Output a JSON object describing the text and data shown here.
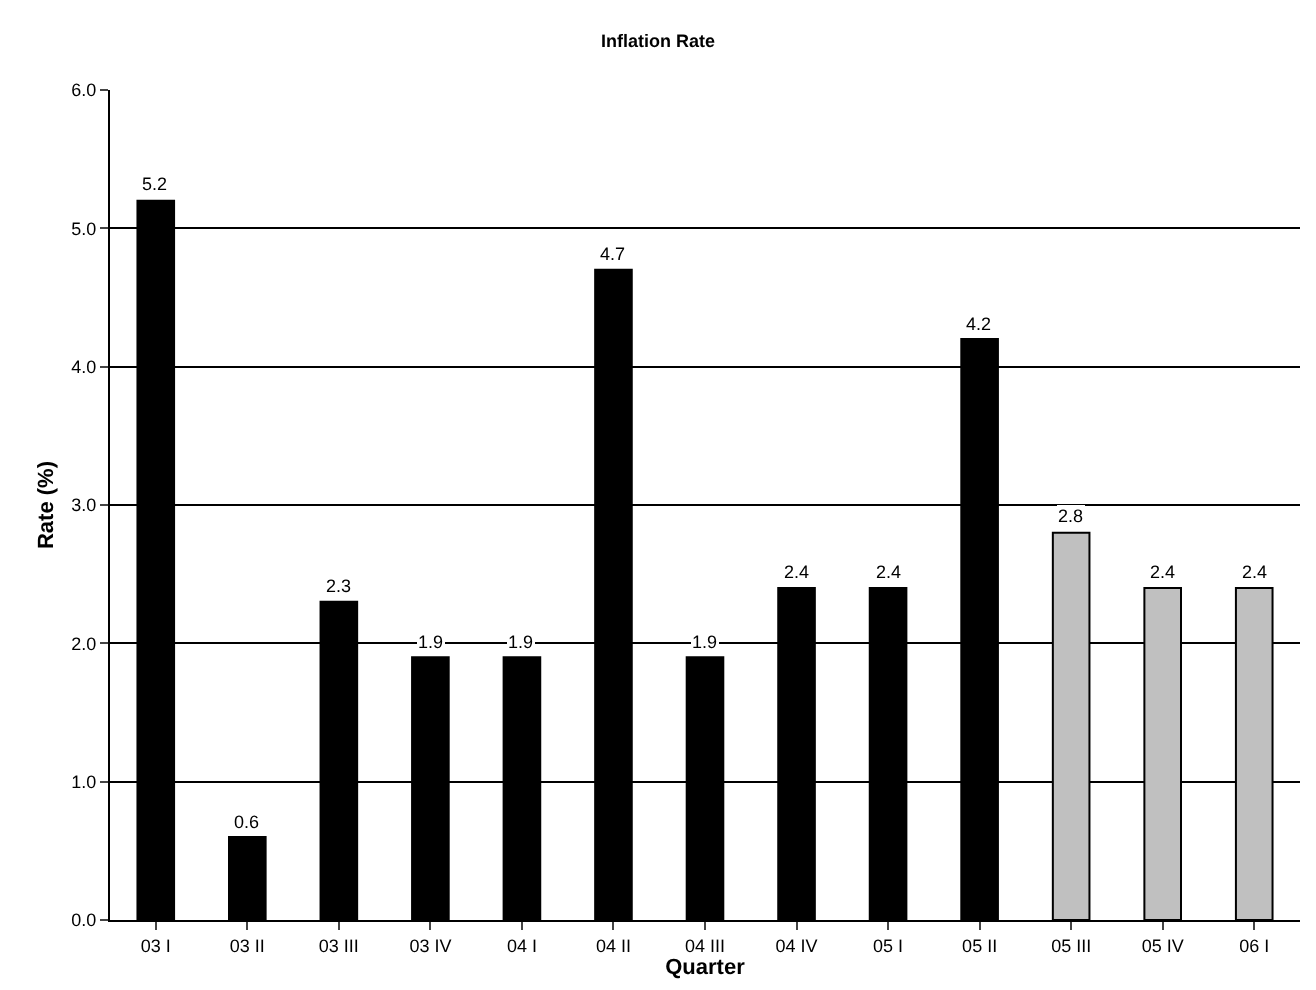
{
  "chart_data": {
    "type": "bar",
    "title": "Inflation Rate",
    "xlabel": "Quarter",
    "ylabel": "Rate (%)",
    "categories": [
      "03 I",
      "03 II",
      "03 III",
      "03 IV",
      "04 I",
      "04 II",
      "04 III",
      "04 IV",
      "05 I",
      "05 II",
      "05 III",
      "05 IV",
      "06 I"
    ],
    "values": [
      5.2,
      0.6,
      2.3,
      1.9,
      1.9,
      4.7,
      1.9,
      2.4,
      2.4,
      4.2,
      2.8,
      2.4,
      2.4
    ],
    "colors": [
      "#000000",
      "#000000",
      "#000000",
      "#000000",
      "#000000",
      "#000000",
      "#000000",
      "#000000",
      "#000000",
      "#000000",
      "#c0c0c0",
      "#c0c0c0",
      "#c0c0c0"
    ],
    "value_labels": [
      "5.2",
      "0.6",
      "2.3",
      "1.9",
      "1.9",
      "4.7",
      "1.9",
      "2.4",
      "2.4",
      "4.2",
      "2.8",
      "2.4",
      "2.4"
    ],
    "ylim": [
      0,
      6
    ],
    "yticks": [
      {
        "value": 0,
        "label": "0.0"
      },
      {
        "value": 1,
        "label": "1.0"
      },
      {
        "value": 2,
        "label": "2.0"
      },
      {
        "value": 3,
        "label": "3.0"
      },
      {
        "value": 4,
        "label": "4.0"
      },
      {
        "value": 5,
        "label": "5.0"
      },
      {
        "value": 6,
        "label": "6.0"
      }
    ],
    "grid": "y"
  }
}
